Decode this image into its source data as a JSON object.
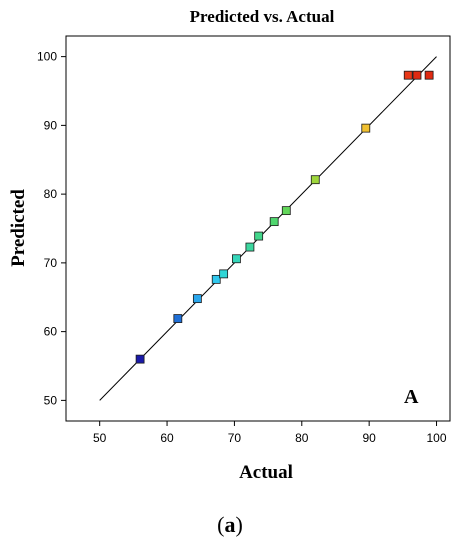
{
  "chart_data": {
    "type": "scatter",
    "title": "Predicted vs. Actual",
    "xlabel": "Actual",
    "ylabel": "Predicted",
    "xlim": [
      45,
      102
    ],
    "ylim": [
      47,
      103
    ],
    "xticks": [
      50,
      60,
      70,
      80,
      90,
      100
    ],
    "yticks": [
      50,
      60,
      70,
      80,
      90,
      100
    ],
    "grid": false,
    "reference_line": {
      "from": [
        50,
        50
      ],
      "to": [
        100,
        100
      ],
      "color": "#000000"
    },
    "points": [
      {
        "x": 56.0,
        "y": 56.0,
        "color": "#1a1aa8"
      },
      {
        "x": 61.6,
        "y": 61.9,
        "color": "#1f6fd6"
      },
      {
        "x": 64.5,
        "y": 64.8,
        "color": "#2aa6ec"
      },
      {
        "x": 67.3,
        "y": 67.6,
        "color": "#30c8ee"
      },
      {
        "x": 68.4,
        "y": 68.4,
        "color": "#30d6d6"
      },
      {
        "x": 70.3,
        "y": 70.6,
        "color": "#35d6ba"
      },
      {
        "x": 72.3,
        "y": 72.3,
        "color": "#3cd69e"
      },
      {
        "x": 73.6,
        "y": 73.9,
        "color": "#42d68a"
      },
      {
        "x": 75.9,
        "y": 76.0,
        "color": "#4fd66e"
      },
      {
        "x": 77.7,
        "y": 77.6,
        "color": "#62d65a"
      },
      {
        "x": 82.0,
        "y": 82.1,
        "color": "#9ed63c"
      },
      {
        "x": 89.5,
        "y": 89.6,
        "color": "#f0c030"
      },
      {
        "x": 95.8,
        "y": 97.3,
        "color": "#e83818"
      },
      {
        "x": 97.1,
        "y": 97.3,
        "color": "#e02a12"
      },
      {
        "x": 98.9,
        "y": 97.3,
        "color": "#e02a12"
      }
    ],
    "annotation": "A"
  },
  "caption": {
    "open": "(",
    "letter": "a",
    "close": ")"
  }
}
